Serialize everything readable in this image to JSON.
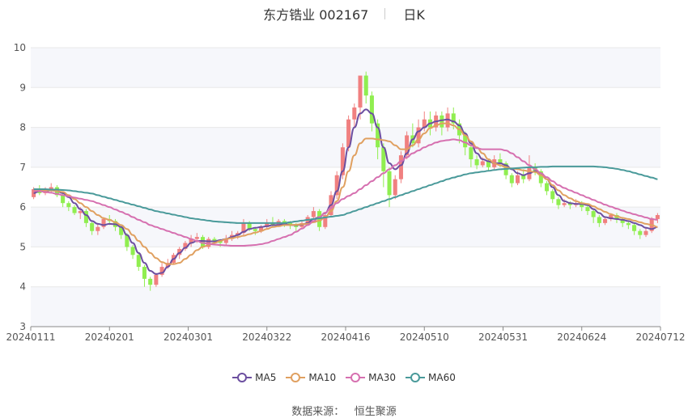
{
  "header": {
    "title": "东方锆业 002167",
    "period": "日K"
  },
  "source": {
    "label": "数据来源：",
    "name": "恒生聚源"
  },
  "colors": {
    "up": "#f08080",
    "down": "#90ee50",
    "grid": "#e8e8e8",
    "band": "#f6f7fb",
    "ma5": "#6c4fa0",
    "ma10": "#e0a060",
    "ma30": "#d670b0",
    "ma60": "#4a9a9a"
  },
  "chart_data": {
    "type": "candlestick",
    "ylim": [
      3,
      10
    ],
    "yticks": [
      3,
      4,
      5,
      6,
      7,
      8,
      9,
      10
    ],
    "x_ticks": [
      "20240111",
      "20240201",
      "20240301",
      "20240322",
      "20240416",
      "20240510",
      "20240531",
      "20240624",
      "20240712"
    ],
    "legend": [
      "MA5",
      "MA10",
      "MA30",
      "MA60"
    ],
    "legend_position": "bottom",
    "candles": [
      [
        6.25,
        6.45,
        6.2,
        6.5
      ],
      [
        6.45,
        6.35,
        6.3,
        6.55
      ],
      [
        6.35,
        6.4,
        6.3,
        6.5
      ],
      [
        6.4,
        6.5,
        6.35,
        6.6
      ],
      [
        6.5,
        6.3,
        6.25,
        6.55
      ],
      [
        6.3,
        6.1,
        6.0,
        6.35
      ],
      [
        6.1,
        6.0,
        5.9,
        6.15
      ],
      [
        6.0,
        5.85,
        5.8,
        6.05
      ],
      [
        5.85,
        5.9,
        5.7,
        6.0
      ],
      [
        5.9,
        5.6,
        5.5,
        5.95
      ],
      [
        5.6,
        5.4,
        5.3,
        5.65
      ],
      [
        5.4,
        5.5,
        5.3,
        5.6
      ],
      [
        5.5,
        5.7,
        5.45,
        5.75
      ],
      [
        5.7,
        5.65,
        5.55,
        5.8
      ],
      [
        5.65,
        5.5,
        5.4,
        5.7
      ],
      [
        5.5,
        5.3,
        5.2,
        5.55
      ],
      [
        5.3,
        5.0,
        4.9,
        5.35
      ],
      [
        5.0,
        4.8,
        4.7,
        5.05
      ],
      [
        4.8,
        4.5,
        4.4,
        4.85
      ],
      [
        4.5,
        4.2,
        4.0,
        4.55
      ],
      [
        4.2,
        4.05,
        3.9,
        4.25
      ],
      [
        4.05,
        4.3,
        4.0,
        4.35
      ],
      [
        4.3,
        4.5,
        4.25,
        4.6
      ],
      [
        4.5,
        4.6,
        4.45,
        4.7
      ],
      [
        4.6,
        4.8,
        4.55,
        4.85
      ],
      [
        4.8,
        4.95,
        4.7,
        5.0
      ],
      [
        4.95,
        5.1,
        4.9,
        5.15
      ],
      [
        5.1,
        5.2,
        5.0,
        5.3
      ],
      [
        5.2,
        5.25,
        5.1,
        5.35
      ],
      [
        5.25,
        5.0,
        4.95,
        5.3
      ],
      [
        5.0,
        5.2,
        4.95,
        5.25
      ],
      [
        5.2,
        5.15,
        5.05,
        5.25
      ],
      [
        5.15,
        5.1,
        5.0,
        5.2
      ],
      [
        5.1,
        5.2,
        5.05,
        5.3
      ],
      [
        5.2,
        5.3,
        5.15,
        5.4
      ],
      [
        5.3,
        5.35,
        5.2,
        5.4
      ],
      [
        5.35,
        5.6,
        5.3,
        5.7
      ],
      [
        5.6,
        5.45,
        5.4,
        5.65
      ],
      [
        5.45,
        5.4,
        5.3,
        5.5
      ],
      [
        5.4,
        5.5,
        5.35,
        5.55
      ],
      [
        5.5,
        5.6,
        5.45,
        5.7
      ],
      [
        5.6,
        5.55,
        5.5,
        5.75
      ],
      [
        5.55,
        5.65,
        5.5,
        5.7
      ],
      [
        5.65,
        5.6,
        5.5,
        5.7
      ],
      [
        5.6,
        5.55,
        5.45,
        5.65
      ],
      [
        5.55,
        5.5,
        5.4,
        5.6
      ],
      [
        5.5,
        5.6,
        5.45,
        5.65
      ],
      [
        5.6,
        5.75,
        5.55,
        5.8
      ],
      [
        5.75,
        5.9,
        5.7,
        6.0
      ],
      [
        5.9,
        5.5,
        5.4,
        5.95
      ],
      [
        5.5,
        5.8,
        5.45,
        5.85
      ],
      [
        5.8,
        6.3,
        5.75,
        6.4
      ],
      [
        6.3,
        6.8,
        6.2,
        6.9
      ],
      [
        6.8,
        7.5,
        6.7,
        7.6
      ],
      [
        7.5,
        8.2,
        7.4,
        8.3
      ],
      [
        8.2,
        8.5,
        8.0,
        8.6
      ],
      [
        8.5,
        9.3,
        8.2,
        9.3
      ],
      [
        9.3,
        8.8,
        8.6,
        9.4
      ],
      [
        8.8,
        8.1,
        7.9,
        8.9
      ],
      [
        8.1,
        7.5,
        7.2,
        8.2
      ],
      [
        7.5,
        6.9,
        6.5,
        7.6
      ],
      [
        6.9,
        6.3,
        6.0,
        7.0
      ],
      [
        6.3,
        6.7,
        6.2,
        6.8
      ],
      [
        6.7,
        7.3,
        6.6,
        7.4
      ],
      [
        7.3,
        7.8,
        7.2,
        7.9
      ],
      [
        7.8,
        7.6,
        7.5,
        8.1
      ],
      [
        7.6,
        8.0,
        7.5,
        8.2
      ],
      [
        8.0,
        8.2,
        7.9,
        8.4
      ],
      [
        8.2,
        8.0,
        7.8,
        8.4
      ],
      [
        8.0,
        8.3,
        7.9,
        8.4
      ],
      [
        8.3,
        8.0,
        7.8,
        8.4
      ],
      [
        8.0,
        8.35,
        7.9,
        8.5
      ],
      [
        8.35,
        8.1,
        7.95,
        8.5
      ],
      [
        8.1,
        7.8,
        7.6,
        8.2
      ],
      [
        7.8,
        7.5,
        7.3,
        7.9
      ],
      [
        7.5,
        7.2,
        7.0,
        7.6
      ],
      [
        7.2,
        7.05,
        6.95,
        7.3
      ],
      [
        7.05,
        7.15,
        7.0,
        7.25
      ],
      [
        7.15,
        7.0,
        6.9,
        7.2
      ],
      [
        7.0,
        7.2,
        6.95,
        7.3
      ],
      [
        7.2,
        7.1,
        7.0,
        7.35
      ],
      [
        7.1,
        6.8,
        6.7,
        7.15
      ],
      [
        6.8,
        6.6,
        6.5,
        6.85
      ],
      [
        6.6,
        6.8,
        6.55,
        6.9
      ],
      [
        6.8,
        6.7,
        6.6,
        6.95
      ],
      [
        6.7,
        7.0,
        6.65,
        7.3
      ],
      [
        7.0,
        6.9,
        6.8,
        7.1
      ],
      [
        6.9,
        6.6,
        6.5,
        6.95
      ],
      [
        6.6,
        6.4,
        6.3,
        6.65
      ],
      [
        6.4,
        6.2,
        6.1,
        6.45
      ],
      [
        6.2,
        6.05,
        5.95,
        6.25
      ],
      [
        6.05,
        6.1,
        6.0,
        6.2
      ],
      [
        6.1,
        6.05,
        5.95,
        6.15
      ],
      [
        6.05,
        6.1,
        6.0,
        6.2
      ],
      [
        6.1,
        6.0,
        5.9,
        6.15
      ],
      [
        6.0,
        5.9,
        5.8,
        6.05
      ],
      [
        5.9,
        5.75,
        5.6,
        5.95
      ],
      [
        5.75,
        5.6,
        5.5,
        5.8
      ],
      [
        5.6,
        5.7,
        5.55,
        5.75
      ],
      [
        5.7,
        5.8,
        5.65,
        5.85
      ],
      [
        5.8,
        5.7,
        5.6,
        5.85
      ],
      [
        5.7,
        5.6,
        5.5,
        5.75
      ],
      [
        5.6,
        5.55,
        5.45,
        5.65
      ],
      [
        5.55,
        5.4,
        5.3,
        5.6
      ],
      [
        5.4,
        5.3,
        5.2,
        5.45
      ],
      [
        5.3,
        5.4,
        5.25,
        5.5
      ],
      [
        5.4,
        5.7,
        5.35,
        5.75
      ],
      [
        5.7,
        5.8,
        5.6,
        5.85
      ]
    ],
    "series": [
      {
        "name": "MA5",
        "values": [
          6.35,
          6.4,
          6.4,
          6.42,
          6.4,
          6.35,
          6.25,
          6.1,
          5.95,
          5.8,
          5.65,
          5.58,
          5.55,
          5.58,
          5.57,
          5.5,
          5.3,
          5.1,
          4.85,
          4.6,
          4.4,
          4.32,
          4.35,
          4.5,
          4.7,
          4.85,
          4.98,
          5.1,
          5.15,
          5.15,
          5.14,
          5.14,
          5.17,
          5.2,
          5.25,
          5.3,
          5.38,
          5.45,
          5.48,
          5.5,
          5.52,
          5.55,
          5.55,
          5.58,
          5.55,
          5.55,
          5.56,
          5.6,
          5.7,
          5.75,
          5.85,
          6.05,
          6.4,
          6.9,
          7.5,
          8.0,
          8.35,
          8.45,
          8.35,
          8.0,
          7.5,
          7.1,
          6.95,
          7.05,
          7.35,
          7.7,
          7.9,
          8.0,
          8.1,
          8.15,
          8.18,
          8.2,
          8.15,
          8.05,
          7.85,
          7.6,
          7.35,
          7.2,
          7.15,
          7.1,
          7.1,
          7.05,
          6.95,
          6.85,
          6.8,
          6.85,
          6.9,
          6.85,
          6.7,
          6.5,
          6.3,
          6.15,
          6.1,
          6.08,
          6.08,
          6.05,
          5.95,
          5.85,
          5.75,
          5.72,
          5.7,
          5.68,
          5.65,
          5.6,
          5.55,
          5.48,
          5.45,
          5.5
        ]
      },
      {
        "name": "MA10",
        "values": [
          6.4,
          6.42,
          6.42,
          6.42,
          6.4,
          6.38,
          6.3,
          6.2,
          6.1,
          6.0,
          5.9,
          5.8,
          5.72,
          5.68,
          5.62,
          5.55,
          5.45,
          5.3,
          5.15,
          5.0,
          4.85,
          4.72,
          4.62,
          4.57,
          4.57,
          4.6,
          4.7,
          4.8,
          4.92,
          5.0,
          5.05,
          5.1,
          5.15,
          5.2,
          5.22,
          5.25,
          5.28,
          5.32,
          5.36,
          5.4,
          5.45,
          5.5,
          5.52,
          5.55,
          5.55,
          5.56,
          5.57,
          5.58,
          5.62,
          5.66,
          5.75,
          5.9,
          6.15,
          6.5,
          6.9,
          7.3,
          7.6,
          7.72,
          7.72,
          7.7,
          7.68,
          7.65,
          7.55,
          7.45,
          7.45,
          7.55,
          7.7,
          7.85,
          7.98,
          8.05,
          8.1,
          8.1,
          8.05,
          7.95,
          7.8,
          7.65,
          7.5,
          7.35,
          7.2,
          7.1,
          7.05,
          7.0,
          6.97,
          6.95,
          6.92,
          6.9,
          6.88,
          6.8,
          6.7,
          6.55,
          6.42,
          6.3,
          6.22,
          6.15,
          6.1,
          6.08,
          6.02,
          5.95,
          5.88,
          5.82,
          5.77,
          5.73,
          5.7,
          5.66,
          5.62,
          5.58,
          5.55,
          5.5
        ]
      },
      {
        "name": "MA30",
        "values": [
          6.4,
          6.4,
          6.38,
          6.36,
          6.33,
          6.3,
          6.27,
          6.24,
          6.21,
          6.18,
          6.15,
          6.1,
          6.05,
          6.0,
          5.94,
          5.88,
          5.82,
          5.75,
          5.68,
          5.62,
          5.55,
          5.5,
          5.45,
          5.4,
          5.35,
          5.3,
          5.25,
          5.2,
          5.15,
          5.1,
          5.08,
          5.06,
          5.05,
          5.04,
          5.03,
          5.03,
          5.03,
          5.04,
          5.05,
          5.07,
          5.1,
          5.15,
          5.2,
          5.25,
          5.3,
          5.38,
          5.46,
          5.55,
          5.65,
          5.75,
          5.86,
          5.98,
          6.1,
          6.2,
          6.28,
          6.35,
          6.45,
          6.55,
          6.65,
          6.75,
          6.85,
          6.95,
          7.05,
          7.15,
          7.25,
          7.35,
          7.42,
          7.5,
          7.56,
          7.62,
          7.66,
          7.68,
          7.7,
          7.68,
          7.62,
          7.55,
          7.48,
          7.45,
          7.45,
          7.45,
          7.45,
          7.42,
          7.35,
          7.25,
          7.15,
          7.05,
          6.95,
          6.85,
          6.75,
          6.65,
          6.55,
          6.48,
          6.42,
          6.36,
          6.3,
          6.24,
          6.18,
          6.12,
          6.06,
          6.01,
          5.96,
          5.91,
          5.86,
          5.82,
          5.78,
          5.74,
          5.7,
          5.68
        ]
      },
      {
        "name": "MA60",
        "values": [
          6.45,
          6.45,
          6.45,
          6.44,
          6.44,
          6.43,
          6.42,
          6.4,
          6.38,
          6.36,
          6.34,
          6.3,
          6.26,
          6.22,
          6.18,
          6.14,
          6.1,
          6.06,
          6.02,
          5.98,
          5.94,
          5.9,
          5.87,
          5.84,
          5.81,
          5.78,
          5.75,
          5.72,
          5.7,
          5.68,
          5.66,
          5.64,
          5.63,
          5.62,
          5.61,
          5.6,
          5.6,
          5.6,
          5.6,
          5.6,
          5.6,
          5.6,
          5.6,
          5.6,
          5.62,
          5.64,
          5.66,
          5.68,
          5.7,
          5.72,
          5.74,
          5.76,
          5.78,
          5.8,
          5.85,
          5.9,
          5.95,
          6.0,
          6.05,
          6.1,
          6.15,
          6.2,
          6.25,
          6.3,
          6.35,
          6.4,
          6.45,
          6.5,
          6.55,
          6.6,
          6.65,
          6.7,
          6.74,
          6.78,
          6.82,
          6.85,
          6.87,
          6.89,
          6.91,
          6.93,
          6.95,
          6.96,
          6.97,
          6.98,
          6.99,
          7.0,
          7.0,
          7.01,
          7.01,
          7.02,
          7.02,
          7.02,
          7.02,
          7.02,
          7.02,
          7.02,
          7.02,
          7.01,
          7.0,
          6.98,
          6.96,
          6.93,
          6.9,
          6.86,
          6.82,
          6.78,
          6.74,
          6.7
        ]
      }
    ]
  }
}
